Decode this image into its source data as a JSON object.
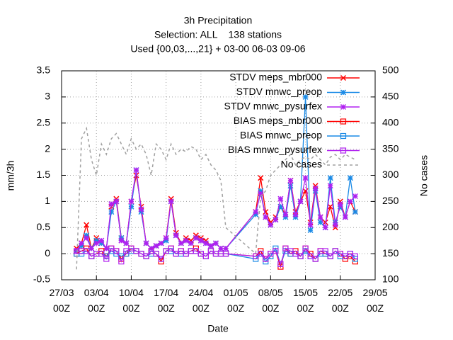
{
  "chart_data": {
    "type": "line",
    "title": "3h Precipitation",
    "subtitle": "Selection: ALL    138 stations",
    "note": "Used {00,03,...,21} + 03-00 06-03 09-06",
    "xlabel": "Date",
    "ylabel": "mm/3h",
    "y2label": "No cases",
    "x": [
      3,
      4,
      5,
      6,
      7,
      8,
      9,
      10,
      11,
      12,
      13,
      14,
      15,
      16,
      17,
      18,
      19,
      20,
      21,
      22,
      23,
      24,
      25,
      26,
      27,
      28,
      29,
      30,
      31,
      32,
      33,
      39,
      40,
      41,
      42,
      43,
      44,
      45,
      46,
      47,
      48,
      49,
      50,
      51,
      52,
      53,
      54,
      55,
      56,
      57,
      58,
      59
    ],
    "xlim": [
      0,
      63
    ],
    "xticks": [
      {
        "value": 0,
        "label": "27/03 00Z"
      },
      {
        "value": 7,
        "label": "03/04 00Z"
      },
      {
        "value": 14,
        "label": "10/04 00Z"
      },
      {
        "value": 21,
        "label": "17/04 00Z"
      },
      {
        "value": 28,
        "label": "24/04 00Z"
      },
      {
        "value": 35,
        "label": "01/05 00Z"
      },
      {
        "value": 42,
        "label": "08/05 00Z"
      },
      {
        "value": 49,
        "label": "15/05 00Z"
      },
      {
        "value": 56,
        "label": "22/05 00Z"
      },
      {
        "value": 63,
        "label": "29/05 00Z"
      }
    ],
    "ylim": [
      -0.5,
      3.5
    ],
    "yticks": [
      -0.5,
      0,
      0.5,
      1,
      1.5,
      2,
      2.5,
      3,
      3.5
    ],
    "y2lim": [
      100,
      500
    ],
    "y2ticks": [
      100,
      150,
      200,
      250,
      300,
      350,
      400,
      450,
      500
    ],
    "grid": true,
    "series": [
      {
        "name": "STDV meps_mbr000",
        "color": "#ff0000",
        "marker": "x",
        "values": [
          0.1,
          0.2,
          0.55,
          0.1,
          0.3,
          0.2,
          0.1,
          0.9,
          1.05,
          0.3,
          0.2,
          1.0,
          1.5,
          0.9,
          0.2,
          0.1,
          0.15,
          0.2,
          0.3,
          1.05,
          0.4,
          0.2,
          0.3,
          0.25,
          0.35,
          0.3,
          0.25,
          0.15,
          0.2,
          0.1,
          0.1,
          0.8,
          1.45,
          0.8,
          0.6,
          0.7,
          0.9,
          0.75,
          1.4,
          0.8,
          1.0,
          1.2,
          0.6,
          1.3,
          0.7,
          0.6,
          0.9,
          0.5,
          1.0,
          0.7,
          1.0,
          0.8
        ]
      },
      {
        "name": "STDV mnwc_preop",
        "color": "#1a8ae6",
        "marker": "star",
        "values": [
          0.05,
          0.15,
          0.35,
          0.1,
          0.25,
          0.2,
          0.1,
          0.8,
          1.0,
          0.3,
          0.2,
          0.9,
          1.6,
          0.8,
          0.2,
          0.1,
          0.15,
          0.2,
          0.25,
          1.0,
          0.35,
          0.2,
          0.25,
          0.2,
          0.3,
          0.25,
          0.2,
          0.15,
          0.2,
          0.1,
          0.1,
          0.75,
          1.2,
          0.7,
          0.55,
          0.65,
          0.9,
          0.7,
          1.3,
          0.7,
          1.0,
          3.0,
          0.45,
          1.2,
          0.6,
          0.5,
          1.45,
          0.6,
          0.9,
          0.7,
          1.45,
          0.8
        ]
      },
      {
        "name": "STDV mnwc_pysurfex",
        "color": "#b020f0",
        "marker": "star",
        "values": [
          0.05,
          0.2,
          0.3,
          0.1,
          0.2,
          0.25,
          0.1,
          0.95,
          1.0,
          0.25,
          0.2,
          1.0,
          1.6,
          0.85,
          0.2,
          0.1,
          0.15,
          0.2,
          0.3,
          1.0,
          0.35,
          0.2,
          0.25,
          0.2,
          0.3,
          0.25,
          0.2,
          0.15,
          0.2,
          0.1,
          0.1,
          0.8,
          1.15,
          0.7,
          0.55,
          0.65,
          1.05,
          0.75,
          1.4,
          0.75,
          1.0,
          1.45,
          0.55,
          1.25,
          0.7,
          0.5,
          1.3,
          0.55,
          0.95,
          0.7,
          1.0,
          1.1
        ]
      },
      {
        "name": "BIAS meps_mbr000",
        "color": "#ff0000",
        "marker": "square",
        "values": [
          0.0,
          0.05,
          0.1,
          -0.05,
          0.0,
          0.05,
          -0.05,
          0.1,
          0.05,
          -0.1,
          0.0,
          0.1,
          0.05,
          0.0,
          -0.05,
          0.05,
          0.0,
          -0.15,
          0.05,
          0.1,
          0.0,
          0.05,
          0.0,
          0.05,
          0.1,
          0.0,
          -0.05,
          0.05,
          0.0,
          0.0,
          0.0,
          -0.05,
          0.05,
          -0.1,
          0.0,
          0.05,
          -0.25,
          0.1,
          0.0,
          0.05,
          -0.05,
          0.1,
          0.0,
          -0.1,
          0.05,
          0.0,
          -0.05,
          0.05,
          0.0,
          -0.1,
          -0.05,
          -0.15
        ]
      },
      {
        "name": "BIAS mnwc_preop",
        "color": "#1a8ae6",
        "marker": "square",
        "values": [
          0.0,
          0.0,
          0.05,
          -0.05,
          0.0,
          0.0,
          -0.05,
          0.05,
          0.0,
          -0.05,
          0.0,
          0.05,
          0.05,
          0.0,
          -0.05,
          0.0,
          0.0,
          -0.1,
          0.05,
          0.05,
          0.0,
          0.0,
          0.0,
          0.05,
          0.05,
          0.0,
          -0.05,
          0.05,
          0.0,
          0.0,
          0.0,
          -0.1,
          0.0,
          -0.15,
          -0.05,
          0.1,
          -0.2,
          0.05,
          0.0,
          0.0,
          -0.05,
          0.05,
          -0.05,
          -0.1,
          0.0,
          0.0,
          -0.05,
          0.05,
          -0.05,
          -0.05,
          0.0,
          -0.1
        ]
      },
      {
        "name": "BIAS mnwc_pysurfex",
        "color": "#b020f0",
        "marker": "square",
        "values": [
          0.05,
          0.05,
          0.05,
          -0.05,
          0.0,
          0.0,
          -0.1,
          0.1,
          0.05,
          -0.15,
          0.05,
          0.1,
          0.05,
          0.0,
          -0.05,
          0.05,
          0.0,
          -0.1,
          0.05,
          0.1,
          0.0,
          0.05,
          0.0,
          0.05,
          0.05,
          0.0,
          -0.05,
          0.05,
          0.0,
          0.0,
          0.0,
          -0.05,
          0.0,
          -0.1,
          0.0,
          0.05,
          -0.2,
          0.1,
          0.05,
          0.0,
          -0.05,
          0.1,
          -0.05,
          -0.1,
          0.05,
          0.05,
          -0.05,
          0.05,
          0.0,
          -0.05,
          0.0,
          -0.05
        ]
      },
      {
        "name": "No cases",
        "color": "#a0a0a0",
        "axis": "y2",
        "dash": true,
        "values": [
          120,
          370,
          390,
          330,
          300,
          360,
          340,
          370,
          380,
          360,
          340,
          370,
          350,
          360,
          340,
          300,
          360,
          350,
          330,
          360,
          340,
          350,
          345,
          355,
          350,
          330,
          340,
          320,
          310,
          290,
          200,
          150,
          260,
          270,
          300,
          310,
          320,
          330,
          340,
          320,
          330,
          335,
          330,
          340,
          330,
          320,
          335,
          340,
          330,
          340,
          335,
          330
        ]
      }
    ]
  }
}
